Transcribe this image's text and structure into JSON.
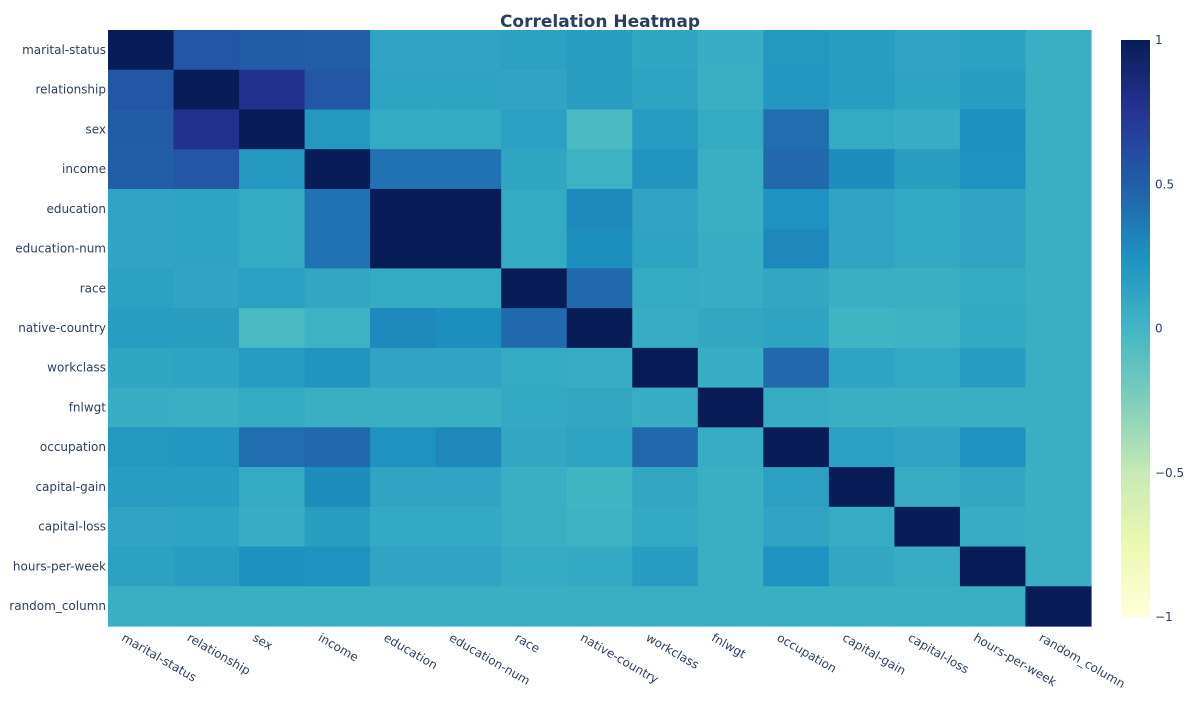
{
  "chart_data": {
    "type": "heatmap",
    "title": "Correlation Heatmap",
    "xlabel": "",
    "ylabel": "",
    "x_labels": [
      "marital-status",
      "relationship",
      "sex",
      "income",
      "education",
      "education-num",
      "race",
      "native-country",
      "workclass",
      "fnlwgt",
      "occupation",
      "capital-gain",
      "capital-loss",
      "hours-per-week",
      "random_column"
    ],
    "y_labels": [
      "marital-status",
      "relationship",
      "sex",
      "income",
      "education",
      "education-num",
      "race",
      "native-country",
      "workclass",
      "fnlwgt",
      "occupation",
      "capital-gain",
      "capital-loss",
      "hours-per-week",
      "random_column"
    ],
    "zmin": -1,
    "zmax": 1,
    "colorscale": "YlGnBu",
    "colorbar_ticks": [
      {
        "value": 1,
        "label": "1"
      },
      {
        "value": 0.5,
        "label": "0.5"
      },
      {
        "value": 0,
        "label": "0"
      },
      {
        "value": -0.5,
        "label": "−0.5"
      },
      {
        "value": -1,
        "label": "−1"
      }
    ],
    "values": [
      [
        1.0,
        0.55,
        0.52,
        0.5,
        0.12,
        0.12,
        0.14,
        0.17,
        0.11,
        0.06,
        0.2,
        0.17,
        0.12,
        0.14,
        0.05
      ],
      [
        0.55,
        1.0,
        0.78,
        0.55,
        0.13,
        0.13,
        0.12,
        0.16,
        0.13,
        0.05,
        0.21,
        0.17,
        0.13,
        0.17,
        0.05
      ],
      [
        0.52,
        0.78,
        1.0,
        0.2,
        0.08,
        0.08,
        0.15,
        -0.04,
        0.18,
        0.08,
        0.42,
        0.08,
        0.06,
        0.25,
        0.05
      ],
      [
        0.5,
        0.55,
        0.2,
        1.0,
        0.4,
        0.4,
        0.11,
        0.03,
        0.22,
        0.05,
        0.45,
        0.27,
        0.16,
        0.24,
        0.05
      ],
      [
        0.12,
        0.13,
        0.08,
        0.4,
        1.0,
        1.0,
        0.08,
        0.29,
        0.12,
        0.05,
        0.24,
        0.12,
        0.09,
        0.12,
        0.05
      ],
      [
        0.12,
        0.13,
        0.08,
        0.4,
        1.0,
        1.0,
        0.08,
        0.26,
        0.13,
        0.06,
        0.3,
        0.12,
        0.09,
        0.12,
        0.05
      ],
      [
        0.14,
        0.12,
        0.15,
        0.1,
        0.08,
        0.08,
        1.0,
        0.44,
        0.08,
        0.07,
        0.1,
        0.05,
        0.05,
        0.08,
        0.05
      ],
      [
        0.17,
        0.16,
        -0.04,
        0.03,
        0.29,
        0.26,
        0.44,
        1.0,
        0.07,
        0.1,
        0.13,
        0.01,
        0.02,
        0.09,
        0.05
      ],
      [
        0.11,
        0.13,
        0.18,
        0.22,
        0.12,
        0.12,
        0.08,
        0.07,
        1.0,
        0.06,
        0.45,
        0.13,
        0.09,
        0.18,
        0.05
      ],
      [
        0.06,
        0.05,
        0.08,
        0.05,
        0.05,
        0.05,
        0.09,
        0.1,
        0.06,
        1.0,
        0.07,
        0.05,
        0.05,
        0.05,
        0.05
      ],
      [
        0.2,
        0.21,
        0.42,
        0.45,
        0.24,
        0.3,
        0.1,
        0.13,
        0.45,
        0.07,
        1.0,
        0.15,
        0.12,
        0.24,
        0.05
      ],
      [
        0.17,
        0.17,
        0.08,
        0.27,
        0.12,
        0.12,
        0.05,
        0.01,
        0.1,
        0.05,
        0.15,
        1.0,
        0.07,
        0.1,
        0.05
      ],
      [
        0.12,
        0.13,
        0.06,
        0.16,
        0.09,
        0.09,
        0.05,
        0.02,
        0.09,
        0.05,
        0.12,
        0.07,
        1.0,
        0.07,
        0.05
      ],
      [
        0.14,
        0.17,
        0.25,
        0.24,
        0.12,
        0.12,
        0.08,
        0.09,
        0.18,
        0.05,
        0.24,
        0.1,
        0.07,
        1.0,
        0.05
      ],
      [
        0.05,
        0.05,
        0.05,
        0.05,
        0.05,
        0.05,
        0.05,
        0.05,
        0.05,
        0.05,
        0.05,
        0.05,
        0.05,
        0.05,
        1.0
      ]
    ]
  }
}
